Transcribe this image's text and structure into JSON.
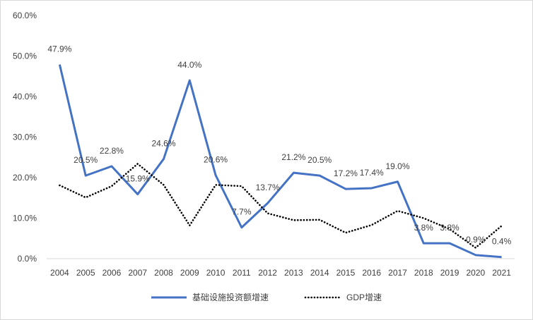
{
  "chart_data": {
    "type": "line",
    "x": [
      "2004",
      "2005",
      "2006",
      "2007",
      "2008",
      "2009",
      "2010",
      "2011",
      "2012",
      "2013",
      "2014",
      "2015",
      "2016",
      "2017",
      "2018",
      "2019",
      "2020",
      "2021"
    ],
    "ylim": [
      0,
      60
    ],
    "yticks": [
      "0.0%",
      "10.0%",
      "20.0%",
      "30.0%",
      "40.0%",
      "50.0%",
      "60.0%"
    ],
    "grid": false,
    "legend_position": "bottom",
    "series": [
      {
        "name": "基础设施投资额增速",
        "style": "solid",
        "color": "#4472C4",
        "values": [
          47.9,
          20.5,
          22.8,
          15.9,
          24.6,
          44.0,
          20.6,
          7.7,
          13.7,
          21.2,
          20.5,
          17.2,
          17.4,
          19.0,
          3.8,
          3.8,
          0.9,
          0.4
        ],
        "labels": [
          "47.9%",
          "20.5%",
          "22.8%",
          "15.9%",
          "24.6%",
          "44.0%",
          "20.6%",
          "7.7%",
          "13.7%",
          "21.2%",
          "20.5%",
          "17.2%",
          "17.4%",
          "19.0%",
          "3.8%",
          "3.8%",
          "0.9%",
          "0.4%"
        ]
      },
      {
        "name": "GDP增速",
        "style": "dotted",
        "color": "#000000",
        "values": [
          18.1,
          15.1,
          17.9,
          23.4,
          18.2,
          8.2,
          18.2,
          17.9,
          11.2,
          9.5,
          9.6,
          6.4,
          8.3,
          11.8,
          10.0,
          7.3,
          2.7,
          8.1
        ]
      }
    ]
  }
}
